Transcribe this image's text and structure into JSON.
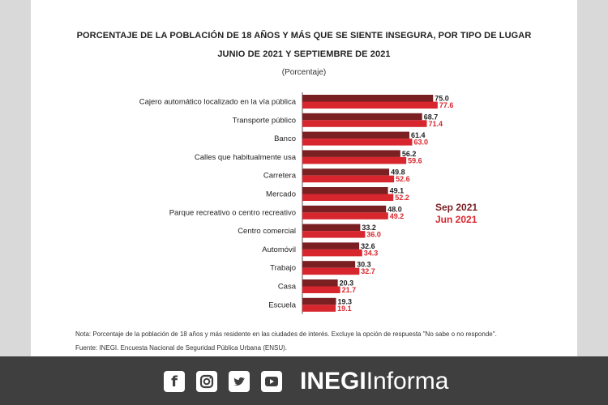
{
  "chart_data": {
    "type": "bar",
    "orientation": "horizontal",
    "title": "PORCENTAJE DE LA POBLACIÓN DE 18 AÑOS Y MÁS QUE SE SIENTE INSEGURA, POR TIPO DE LUGAR",
    "title_line2": "JUNIO DE 2021 Y SEPTIEMBRE DE 2021",
    "subtitle": "(Porcentaje)",
    "categories": [
      "Cajero automático localizado en la vía pública",
      "Transporte público",
      "Banco",
      "Calles que habitualmente usa",
      "Carretera",
      "Mercado",
      "Parque recreativo o centro recreativo",
      "Centro comercial",
      "Automóvil",
      "Trabajo",
      "Casa",
      "Escuela"
    ],
    "series": [
      {
        "name": "Sep 2021",
        "color": "#7a1f22",
        "values": [
          75.0,
          68.7,
          61.4,
          56.2,
          49.8,
          49.1,
          48.0,
          33.2,
          32.6,
          30.3,
          20.3,
          19.3
        ]
      },
      {
        "name": "Jun 2021",
        "color": "#d7262e",
        "values": [
          77.6,
          71.4,
          63.0,
          59.6,
          52.6,
          52.2,
          49.2,
          36.0,
          34.3,
          32.7,
          21.7,
          19.1
        ]
      }
    ],
    "labels": {
      "series0": [
        "75.0",
        "68.7",
        "61.4",
        "56.2",
        "49.8",
        "49.1",
        "48.0",
        "33.2",
        "32.6",
        "30.3",
        "20.3",
        "19.3"
      ],
      "series1": [
        "77.6",
        "71.4",
        "63.0",
        "59.6",
        "52.6",
        "52.2",
        "49.2",
        "36.0",
        "34.3",
        "32.7",
        "21.7",
        "19.1"
      ]
    },
    "legend_position": "right",
    "grid": false
  },
  "note": "Nota: Porcentaje de la población de 18 años y más residente en las ciudades de interés. Excluye la opción de respuesta \"No sabe o no responde\".",
  "source": "Fuente: INEGI. Encuesta Nacional de Seguridad Pública Urbana (ENSU).",
  "footer": {
    "icons": [
      "facebook-icon",
      "instagram-icon",
      "twitter-icon",
      "youtube-icon"
    ],
    "brand_bold": "INEGI",
    "brand_light": "Informa"
  }
}
